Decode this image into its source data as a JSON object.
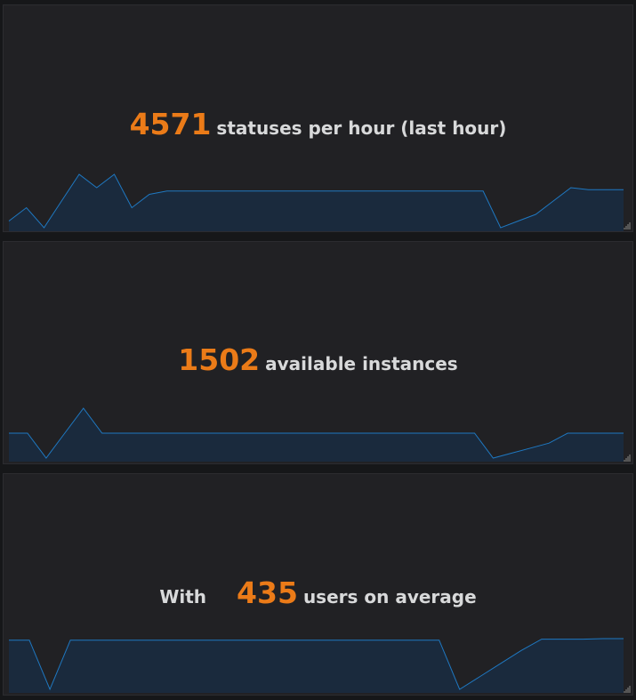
{
  "colors": {
    "background": "#161719",
    "panel": "#212124",
    "value": "#eb7b18",
    "label": "#d8d9da",
    "sparkline_stroke": "#1f78c1",
    "sparkline_fill": "#1a2a3d"
  },
  "panels": [
    {
      "prefix": "",
      "value": "4571",
      "postfix": "statuses per hour (last hour)",
      "sparkline": [
        10,
        30,
        0,
        40,
        80,
        60,
        80,
        30,
        50,
        55,
        55,
        55,
        55,
        55,
        55,
        55,
        55,
        55,
        55,
        55,
        55,
        55,
        55,
        55,
        55,
        55,
        55,
        55,
        0,
        10,
        20,
        40,
        60,
        57,
        57,
        57
      ]
    },
    {
      "prefix": "",
      "value": "1502",
      "postfix": "available instances",
      "sparkline": [
        50,
        50,
        0,
        50,
        100,
        50,
        50,
        50,
        50,
        50,
        50,
        50,
        50,
        50,
        50,
        50,
        50,
        50,
        50,
        50,
        50,
        50,
        50,
        50,
        50,
        50,
        0,
        10,
        20,
        30,
        50,
        50,
        50,
        50
      ]
    },
    {
      "prefix": "With",
      "value": "435",
      "postfix": "users on average",
      "sparkline": [
        95,
        95,
        0,
        95,
        95,
        95,
        95,
        95,
        95,
        95,
        95,
        95,
        95,
        95,
        95,
        95,
        95,
        95,
        95,
        95,
        95,
        95,
        0,
        25,
        50,
        75,
        97,
        97,
        97,
        98,
        98
      ]
    }
  ]
}
